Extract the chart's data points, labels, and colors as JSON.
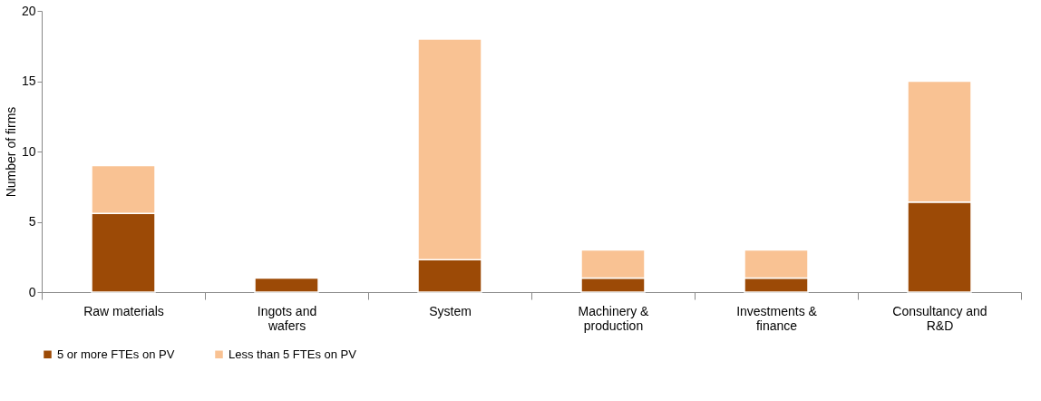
{
  "chart_data": {
    "type": "bar",
    "stacked": true,
    "ylabel": "Number of firms",
    "categories": [
      "Raw materials",
      "Ingots and wafers",
      "System",
      "Machinery & production",
      "Investments & finance",
      "Consultancy and R&D"
    ],
    "series": [
      {
        "name": "5 or more FTEs on PV",
        "color": "#9c4a06",
        "values": [
          5.6,
          1,
          2.3,
          1,
          1,
          6.4
        ]
      },
      {
        "name": "Less than 5 FTEs on PV",
        "color": "#f9c293",
        "values": [
          3.4,
          null,
          15.7,
          2,
          2,
          8.6
        ]
      }
    ],
    "ylim": [
      0,
      20
    ],
    "yticks": [
      0,
      5,
      10,
      15,
      20
    ],
    "grid": false,
    "legend": "bottom"
  }
}
